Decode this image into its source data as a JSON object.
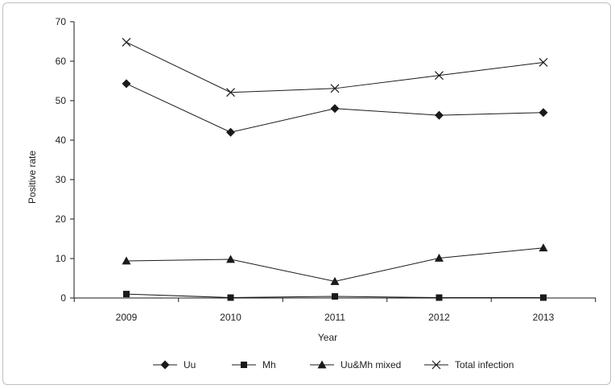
{
  "chart_data": {
    "type": "line",
    "title": "",
    "xlabel": "Year",
    "ylabel": "Positive rate",
    "categories": [
      "2009",
      "2010",
      "2011",
      "2012",
      "2013"
    ],
    "ylim": [
      0,
      70
    ],
    "yticks": [
      0,
      10,
      20,
      30,
      40,
      50,
      60,
      70
    ],
    "grid": false,
    "legend_position": "bottom",
    "series": [
      {
        "name": "Uu",
        "marker": "diamond",
        "values": [
          54.3,
          42.0,
          48.0,
          46.3,
          47.0
        ]
      },
      {
        "name": "Mh",
        "marker": "square",
        "values": [
          1.0,
          0.1,
          0.4,
          0.1,
          0.1
        ]
      },
      {
        "name": "Uu&Mh mixed",
        "marker": "triangle",
        "values": [
          9.4,
          9.8,
          4.2,
          10.1,
          12.7
        ]
      },
      {
        "name": "Total infection",
        "marker": "x",
        "values": [
          64.8,
          52.1,
          53.1,
          56.4,
          59.7
        ]
      }
    ],
    "colors": {
      "line": "#1a1a1a",
      "marker": "#1a1a1a",
      "frame": "#bfbfbf"
    }
  }
}
